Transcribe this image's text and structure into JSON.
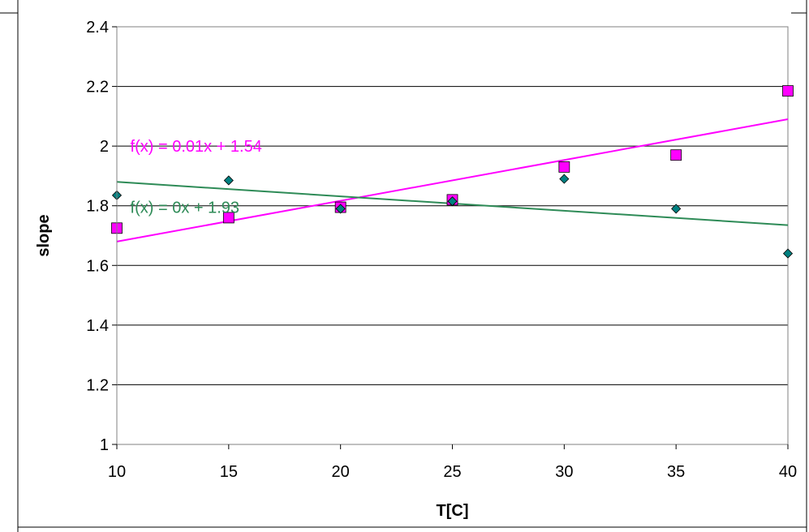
{
  "chart_data": {
    "type": "scatter",
    "title": "",
    "xlabel": "T[C]",
    "ylabel": "slope",
    "xlim": [
      10,
      40
    ],
    "ylim": [
      1,
      2.4
    ],
    "x_ticks": [
      10,
      15,
      20,
      25,
      30,
      35,
      40
    ],
    "y_ticks": [
      1,
      1.2,
      1.4,
      1.6,
      1.8,
      2,
      2.2,
      2.4
    ],
    "x_tick_labels": [
      "10",
      "15",
      "20",
      "25",
      "30",
      "35",
      "40"
    ],
    "y_tick_labels": [
      "1",
      "1.2",
      "1.4",
      "1.6",
      "1.8",
      "2",
      "2.2",
      "2.4"
    ],
    "grid": "horizontal",
    "legend": "none",
    "series": [
      {
        "marker": "square",
        "color": "#ff00ff",
        "x": [
          10,
          15,
          20,
          25,
          30,
          35,
          40
        ],
        "y": [
          1.725,
          1.76,
          1.795,
          1.82,
          1.93,
          1.97,
          2.185
        ],
        "trendline": {
          "y_at_xmin": 1.68,
          "y_at_xmax": 2.09,
          "color": "#ff00ff"
        }
      },
      {
        "marker": "diamond",
        "color": "#008080",
        "x": [
          10,
          15,
          20,
          25,
          30,
          35,
          40
        ],
        "y": [
          1.835,
          1.885,
          1.79,
          1.815,
          1.89,
          1.79,
          1.64
        ],
        "trendline": {
          "y_at_xmin": 1.88,
          "y_at_xmax": 1.735,
          "color": "#2e8b57"
        }
      }
    ],
    "annotations": [
      {
        "text": "f(x) = 0.01x + 1.54",
        "color": "#ff00ff",
        "x": 10.6,
        "y": 2.0
      },
      {
        "text": "f(x) = 0x + 1.93",
        "color": "#2e8b57",
        "x": 10.6,
        "y": 1.795
      }
    ]
  }
}
